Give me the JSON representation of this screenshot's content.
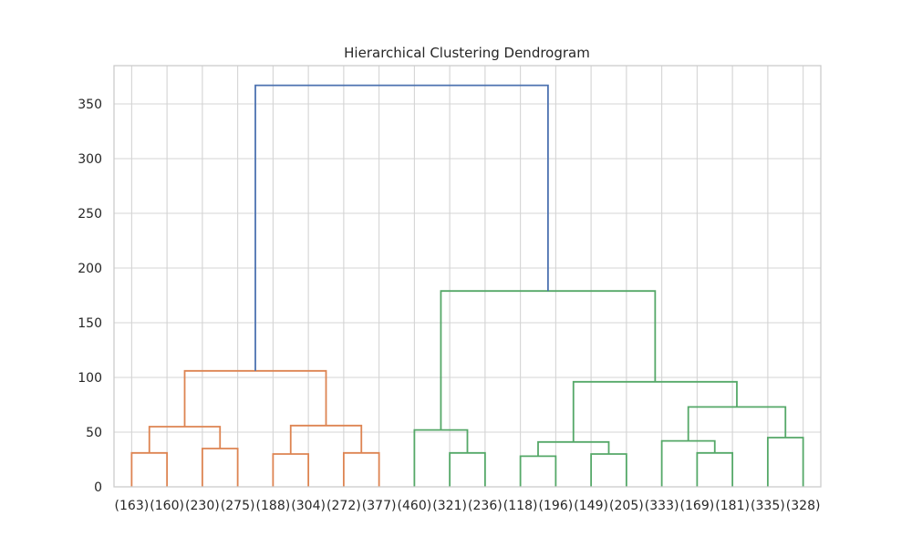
{
  "chart_data": {
    "type": "dendrogram",
    "title": "Hierarchical Clustering Dendrogram",
    "xlabel": "",
    "ylabel": "",
    "ylim": [
      0,
      385
    ],
    "y_ticks": [
      0,
      50,
      100,
      150,
      200,
      250,
      300,
      350
    ],
    "grid": true,
    "leaves": [
      "(163)",
      "(160)",
      "(230)",
      "(275)",
      "(188)",
      "(304)",
      "(272)",
      "(377)",
      "(460)",
      "(321)",
      "(236)",
      "(118)",
      "(196)",
      "(149)",
      "(205)",
      "(333)",
      "(169)",
      "(181)",
      "(335)",
      "(328)"
    ],
    "colors": {
      "above_threshold": "#4c72b0",
      "cluster_1": "#dd8452",
      "cluster_2": "#55a868"
    },
    "links": [
      {
        "id": "m1",
        "left": "leaf:0",
        "right": "leaf:1",
        "height": 31,
        "color": "cluster_1"
      },
      {
        "id": "m2",
        "left": "leaf:2",
        "right": "leaf:3",
        "height": 35,
        "color": "cluster_1"
      },
      {
        "id": "m3",
        "left": "m1",
        "right": "m2",
        "height": 55,
        "color": "cluster_1"
      },
      {
        "id": "m4",
        "left": "leaf:4",
        "right": "leaf:5",
        "height": 30,
        "color": "cluster_1"
      },
      {
        "id": "m5",
        "left": "leaf:6",
        "right": "leaf:7",
        "height": 31,
        "color": "cluster_1"
      },
      {
        "id": "m6",
        "left": "m4",
        "right": "m5",
        "height": 56,
        "color": "cluster_1"
      },
      {
        "id": "m7",
        "left": "m3",
        "right": "m6",
        "height": 106,
        "color": "cluster_1"
      },
      {
        "id": "m8",
        "left": "leaf:9",
        "right": "leaf:10",
        "height": 31,
        "color": "cluster_2"
      },
      {
        "id": "m9",
        "left": "leaf:8",
        "right": "m8",
        "height": 52,
        "color": "cluster_2"
      },
      {
        "id": "m10",
        "left": "leaf:11",
        "right": "leaf:12",
        "height": 28,
        "color": "cluster_2"
      },
      {
        "id": "m11",
        "left": "leaf:13",
        "right": "leaf:14",
        "height": 30,
        "color": "cluster_2"
      },
      {
        "id": "m12",
        "left": "m10",
        "right": "m11",
        "height": 41,
        "color": "cluster_2"
      },
      {
        "id": "m13",
        "left": "leaf:16",
        "right": "leaf:17",
        "height": 31,
        "color": "cluster_2"
      },
      {
        "id": "m14",
        "left": "leaf:15",
        "right": "m13",
        "height": 42,
        "color": "cluster_2"
      },
      {
        "id": "m15",
        "left": "leaf:18",
        "right": "leaf:19",
        "height": 45,
        "color": "cluster_2"
      },
      {
        "id": "m16",
        "left": "m14",
        "right": "m15",
        "height": 73,
        "color": "cluster_2"
      },
      {
        "id": "m17",
        "left": "m12",
        "right": "m16",
        "height": 96,
        "color": "cluster_2"
      },
      {
        "id": "m18",
        "left": "m9",
        "right": "m17",
        "height": 179,
        "color": "cluster_2"
      },
      {
        "id": "m19",
        "left": "m7",
        "right": "m18",
        "height": 367,
        "color": "above_threshold"
      }
    ]
  }
}
